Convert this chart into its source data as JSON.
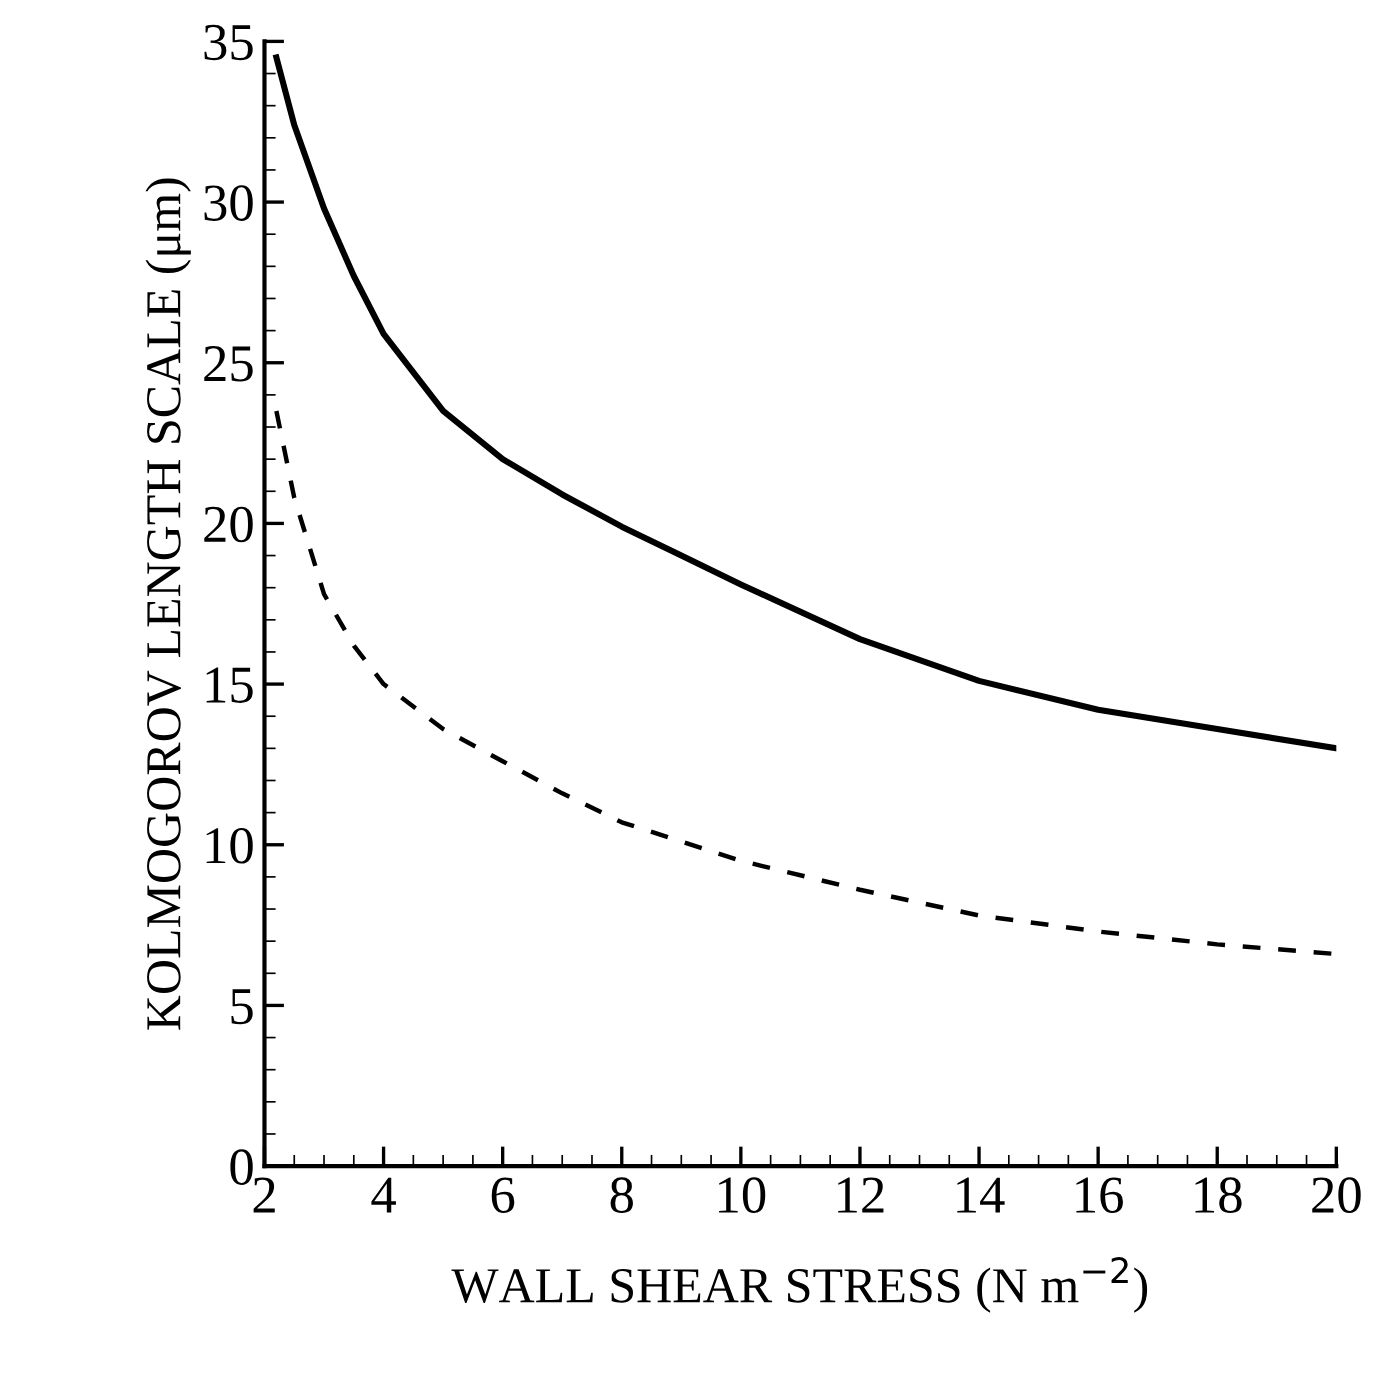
{
  "chart_data": {
    "type": "line",
    "xlabel": "WALL SHEAR STRESS (N m$^{−2}$)",
    "ylabel": "KOLMOGOROV LENGTH SCALE (μm)",
    "xlim": [
      2,
      20
    ],
    "ylim": [
      0,
      35
    ],
    "xticks": [
      2,
      4,
      6,
      8,
      10,
      12,
      14,
      16,
      18,
      20
    ],
    "yticks": [
      0,
      5,
      10,
      15,
      20,
      25,
      30,
      35
    ],
    "grid": false,
    "legend": false,
    "marker": "none",
    "series": [
      {
        "color": "#000000",
        "line_style": "solid",
        "x": [
          2.2,
          2.5,
          3,
          3.5,
          4,
          5,
          6,
          7,
          8,
          9,
          10,
          12,
          14,
          16,
          18,
          20
        ],
        "values": [
          34.5,
          32.4,
          29.8,
          27.7,
          25.9,
          23.5,
          22.0,
          20.9,
          19.9,
          19.0,
          18.1,
          16.4,
          15.1,
          14.2,
          13.6,
          13.0
        ]
      },
      {
        "color": "#000000",
        "line_style": "dashed",
        "x": [
          2.2,
          2.5,
          3,
          3.5,
          4,
          5,
          6,
          7,
          8,
          9,
          10,
          12,
          14,
          16,
          18,
          20
        ],
        "values": [
          23.5,
          20.8,
          17.8,
          16.2,
          15.0,
          13.6,
          12.6,
          11.6,
          10.7,
          10.1,
          9.5,
          8.6,
          7.8,
          7.3,
          6.9,
          6.6
        ]
      }
    ]
  }
}
